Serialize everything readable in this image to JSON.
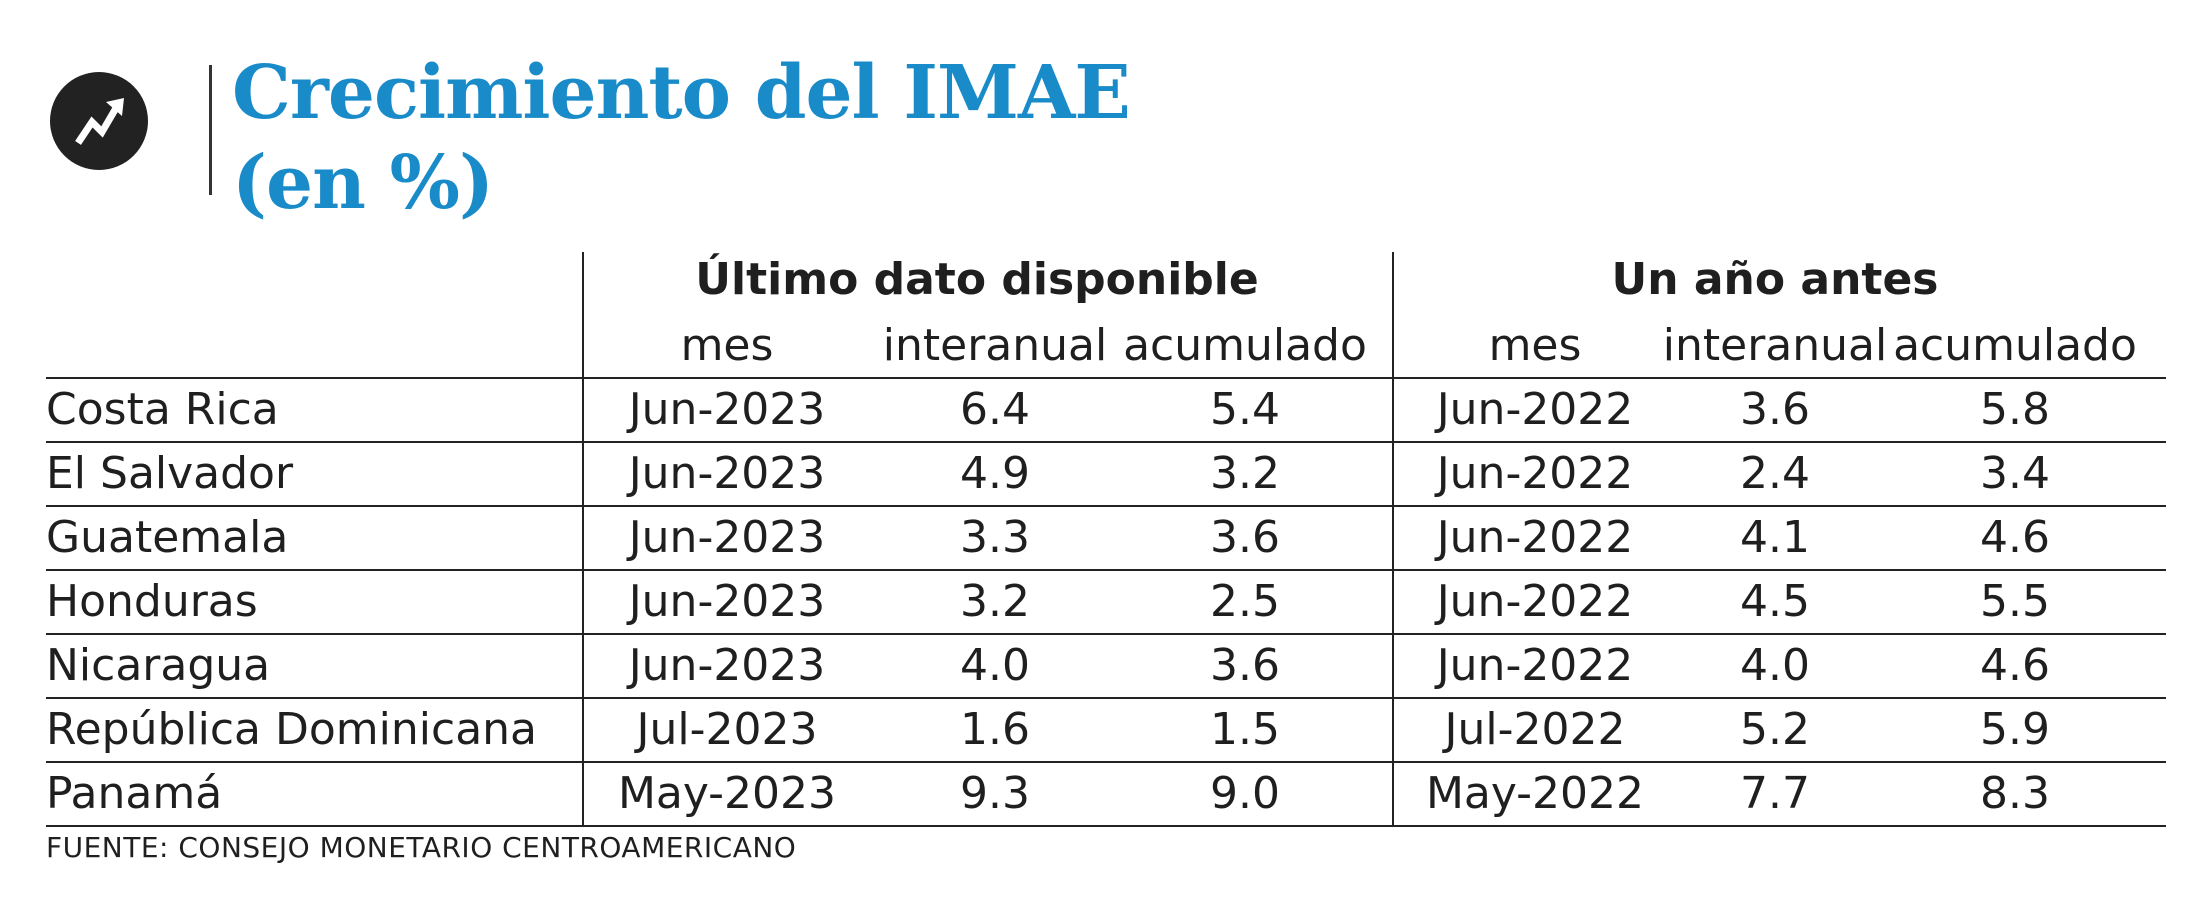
{
  "title": {
    "line1": "Crecimiento del IMAE",
    "line2": "(en %)"
  },
  "icon": "trending-up-icon",
  "colors": {
    "title": "#1a8bc9",
    "icon_bg": "#222222"
  },
  "chart_data": {
    "type": "table",
    "groups": [
      {
        "label": "Último dato disponible",
        "columns": [
          "mes",
          "interanual",
          "acumulado"
        ]
      },
      {
        "label": "Un año antes",
        "columns": [
          "mes",
          "interanual",
          "acumulado"
        ]
      }
    ],
    "rows": [
      {
        "country": "Costa Rica",
        "latest": {
          "mes": "Jun-2023",
          "interanual": "6.4",
          "acumulado": "5.4"
        },
        "prior": {
          "mes": "Jun-2022",
          "interanual": "3.6",
          "acumulado": "5.8"
        }
      },
      {
        "country": "El Salvador",
        "latest": {
          "mes": "Jun-2023",
          "interanual": "4.9",
          "acumulado": "3.2"
        },
        "prior": {
          "mes": "Jun-2022",
          "interanual": "2.4",
          "acumulado": "3.4"
        }
      },
      {
        "country": "Guatemala",
        "latest": {
          "mes": "Jun-2023",
          "interanual": "3.3",
          "acumulado": "3.6"
        },
        "prior": {
          "mes": "Jun-2022",
          "interanual": "4.1",
          "acumulado": "4.6"
        }
      },
      {
        "country": "Honduras",
        "latest": {
          "mes": "Jun-2023",
          "interanual": "3.2",
          "acumulado": "2.5"
        },
        "prior": {
          "mes": "Jun-2022",
          "interanual": "4.5",
          "acumulado": "5.5"
        }
      },
      {
        "country": "Nicaragua",
        "latest": {
          "mes": "Jun-2023",
          "interanual": "4.0",
          "acumulado": "3.6"
        },
        "prior": {
          "mes": "Jun-2022",
          "interanual": "4.0",
          "acumulado": "4.6"
        }
      },
      {
        "country": "República Dominicana",
        "latest": {
          "mes": "Jul-2023",
          "interanual": "1.6",
          "acumulado": "1.5"
        },
        "prior": {
          "mes": "Jul-2022",
          "interanual": "5.2",
          "acumulado": "5.9"
        }
      },
      {
        "country": "Panamá",
        "latest": {
          "mes": "May-2023",
          "interanual": "9.3",
          "acumulado": "9.0"
        },
        "prior": {
          "mes": "May-2022",
          "interanual": "7.7",
          "acumulado": "8.3"
        }
      }
    ]
  },
  "source": "FUENTE: CONSEJO MONETARIO CENTROAMERICANO"
}
